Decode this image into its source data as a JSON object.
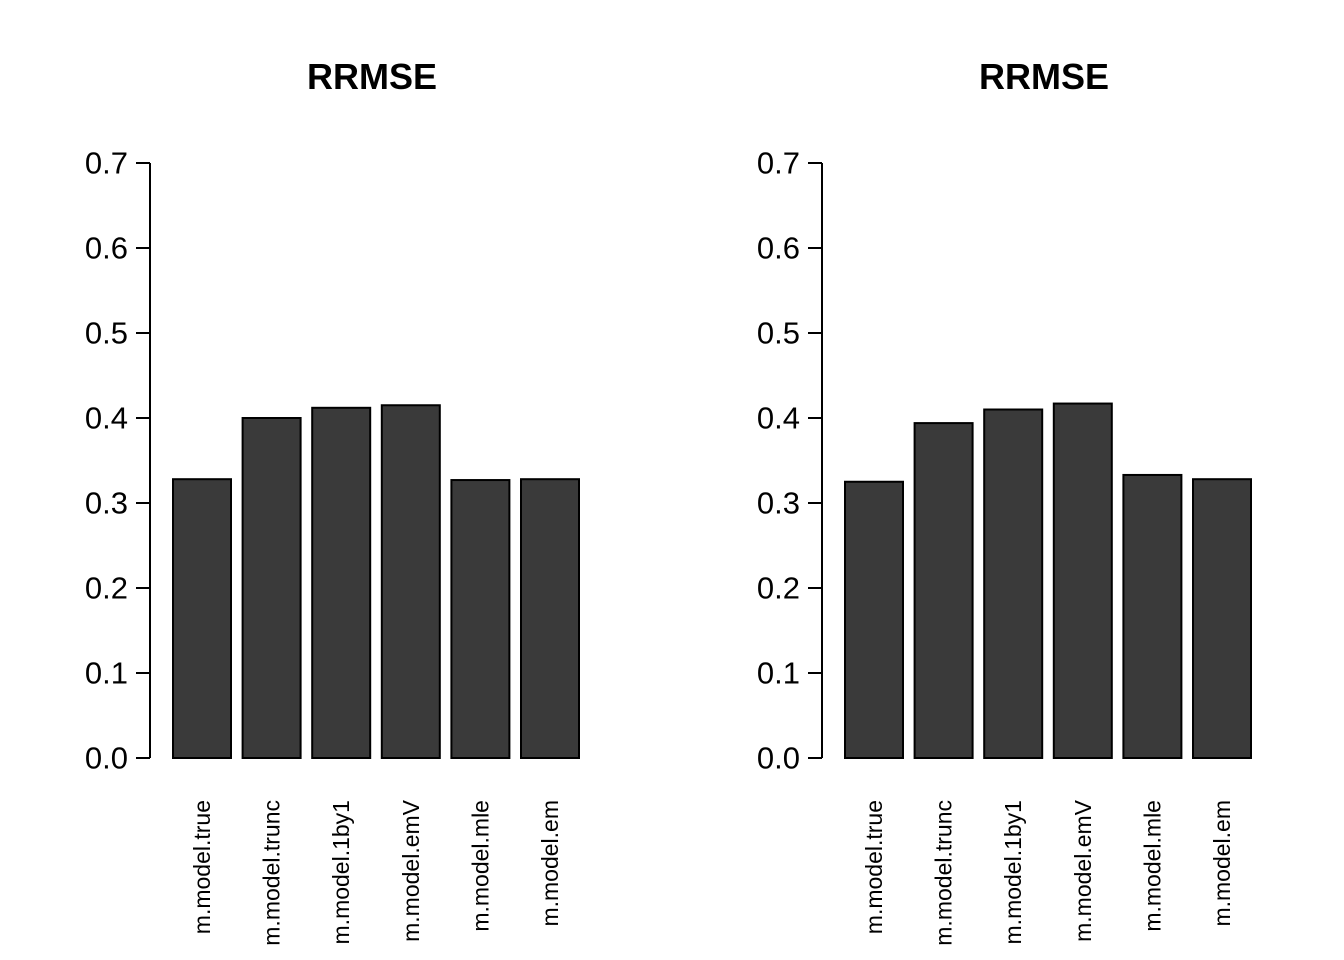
{
  "page": {
    "background_color": "#ffffff",
    "text_color": "#000000"
  },
  "chart_data": [
    {
      "type": "bar",
      "title": "RRMSE",
      "xlabel": "",
      "ylabel": "",
      "categories": [
        "m.model.true",
        "m.model.trunc",
        "m.model.1by1",
        "m.model.emV",
        "m.model.mle",
        "m.model.em"
      ],
      "values": [
        0.328,
        0.4,
        0.412,
        0.415,
        0.327,
        0.328
      ],
      "ylim": [
        0.0,
        0.7
      ],
      "ytick_labels": [
        "0.0",
        "0.1",
        "0.2",
        "0.3",
        "0.4",
        "0.5",
        "0.6",
        "0.7"
      ],
      "grid": false,
      "legend": "none",
      "bar_fill_color": "#3a3a3a",
      "bar_border_color": "#000000",
      "axis_color": "#000000",
      "x_labels_rotated_degrees": 90
    },
    {
      "type": "bar",
      "title": "RRMSE",
      "xlabel": "",
      "ylabel": "",
      "categories": [
        "m.model.true",
        "m.model.trunc",
        "m.model.1by1",
        "m.model.emV",
        "m.model.mle",
        "m.model.em"
      ],
      "values": [
        0.325,
        0.394,
        0.41,
        0.417,
        0.333,
        0.328
      ],
      "ylim": [
        0.0,
        0.7
      ],
      "ytick_labels": [
        "0.0",
        "0.1",
        "0.2",
        "0.3",
        "0.4",
        "0.5",
        "0.6",
        "0.7"
      ],
      "grid": false,
      "legend": "none",
      "bar_fill_color": "#3a3a3a",
      "bar_border_color": "#000000",
      "axis_color": "#000000",
      "x_labels_rotated_degrees": 90
    }
  ]
}
